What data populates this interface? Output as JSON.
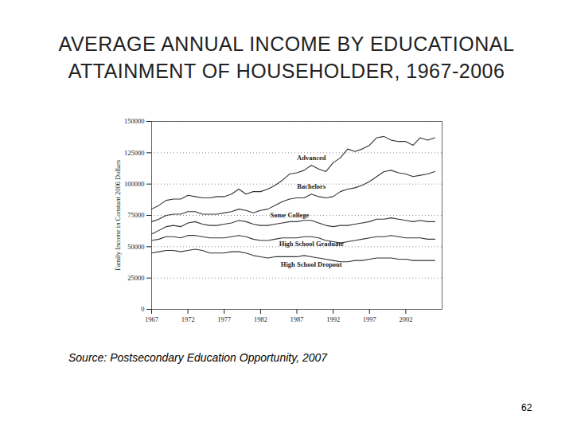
{
  "chart_data": {
    "type": "line",
    "title": "AVERAGE ANNUAL INCOME BY EDUCATIONAL ATTAINMENT OF HOUSEHOLDER, 1967-2006",
    "y_label": "Family Income in Constant 2006 Dollars",
    "source": "Source: Postsecondary Education Opportunity, 2007",
    "page_number": "62",
    "x": [
      1967,
      1968,
      1969,
      1970,
      1971,
      1972,
      1973,
      1974,
      1975,
      1976,
      1977,
      1978,
      1979,
      1980,
      1981,
      1982,
      1983,
      1984,
      1985,
      1986,
      1987,
      1988,
      1989,
      1990,
      1991,
      1992,
      1993,
      1994,
      1995,
      1996,
      1997,
      1998,
      1999,
      2000,
      2001,
      2002,
      2003,
      2004,
      2005,
      2006
    ],
    "series": [
      {
        "name": "Advanced",
        "color": "#333333",
        "values": [
          80000,
          83000,
          87000,
          88000,
          88000,
          91000,
          90000,
          89000,
          89000,
          90000,
          90000,
          92000,
          96000,
          92000,
          94000,
          94000,
          96000,
          99000,
          103000,
          108000,
          109000,
          111000,
          115000,
          112000,
          110000,
          117000,
          121000,
          128000,
          126000,
          128000,
          131000,
          137000,
          138000,
          135000,
          134000,
          134000,
          131000,
          137000,
          135000,
          137000
        ]
      },
      {
        "name": "Bachelors",
        "color": "#333333",
        "values": [
          70000,
          72000,
          75000,
          76000,
          76000,
          78000,
          78000,
          76000,
          76000,
          76000,
          77000,
          78000,
          80000,
          79000,
          77000,
          79000,
          80000,
          83000,
          86000,
          88000,
          89000,
          89000,
          92000,
          90000,
          89000,
          90000,
          94000,
          96000,
          97000,
          99000,
          102000,
          106000,
          110000,
          111000,
          109000,
          108000,
          106000,
          107000,
          108000,
          110000
        ]
      },
      {
        "name": "Some College",
        "color": "#333333",
        "values": [
          60000,
          63000,
          66000,
          67000,
          66000,
          69000,
          70000,
          68000,
          67000,
          67000,
          68000,
          69000,
          71000,
          70000,
          68000,
          67000,
          67000,
          68000,
          69000,
          70000,
          70000,
          71000,
          71000,
          69000,
          67000,
          66000,
          67000,
          67000,
          68000,
          69000,
          70000,
          72000,
          72000,
          73000,
          72000,
          71000,
          70000,
          71000,
          70000,
          70000
        ]
      },
      {
        "name": "High School Graduate",
        "color": "#333333",
        "values": [
          55000,
          56000,
          58000,
          58000,
          57000,
          59000,
          59000,
          58000,
          57000,
          57000,
          57000,
          58000,
          59000,
          58000,
          56000,
          55000,
          55000,
          56000,
          57000,
          57000,
          57000,
          58000,
          58000,
          57000,
          55000,
          54000,
          53000,
          54000,
          55000,
          56000,
          57000,
          58000,
          58000,
          59000,
          58000,
          57000,
          57000,
          57000,
          56000,
          56000
        ]
      },
      {
        "name": "High School Dropout",
        "color": "#333333",
        "values": [
          45000,
          46000,
          47000,
          47000,
          46000,
          47000,
          48000,
          47000,
          45000,
          45000,
          45000,
          46000,
          46000,
          45000,
          43000,
          42000,
          41000,
          42000,
          42000,
          42000,
          42000,
          43000,
          42000,
          41000,
          40000,
          39000,
          38000,
          38000,
          39000,
          39000,
          40000,
          41000,
          41000,
          41000,
          40000,
          40000,
          39000,
          39000,
          39000,
          39000
        ]
      }
    ],
    "xlim": [
      1967,
      2007
    ],
    "xticks": [
      1967,
      1972,
      1977,
      1982,
      1987,
      1992,
      1997,
      2002
    ],
    "ylim": [
      0,
      150000
    ],
    "yticks": [
      0,
      25000,
      50000,
      75000,
      100000,
      125000,
      150000
    ],
    "grid": true
  }
}
